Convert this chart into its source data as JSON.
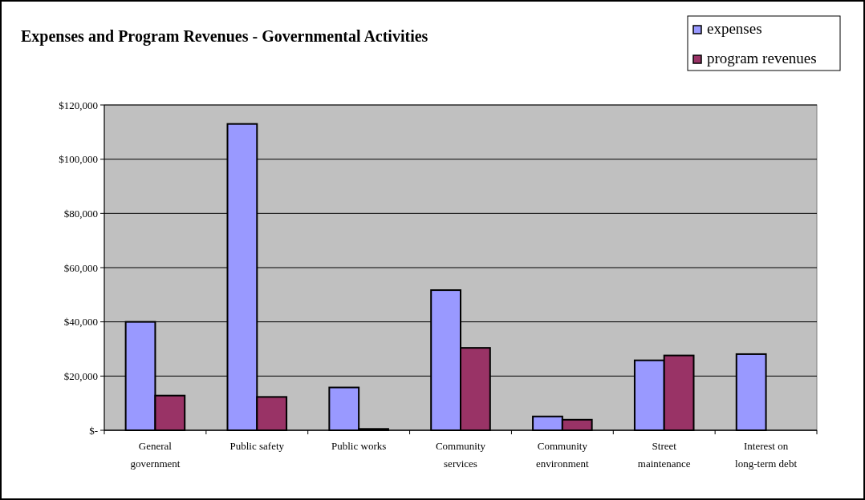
{
  "chart_data": {
    "type": "bar",
    "title": "Expenses and Program Revenues - Governmental Activities",
    "categories": [
      "General government",
      "Public safety",
      "Public works",
      "Community services",
      "Community environment",
      "Street maintenance",
      "Interest on long-term debt"
    ],
    "series": [
      {
        "name": "expenses",
        "color": "#9999ff",
        "values": [
          40000,
          113000,
          15800,
          51700,
          5100,
          25800,
          28100
        ]
      },
      {
        "name": "program revenues",
        "color": "#993366",
        "values": [
          12800,
          12300,
          500,
          30400,
          3900,
          27600,
          null
        ]
      }
    ],
    "ylim": [
      0,
      120000
    ],
    "yticks": [
      {
        "value": 0,
        "label": "$-"
      },
      {
        "value": 20000,
        "label": "$20,000"
      },
      {
        "value": 40000,
        "label": "$40,000"
      },
      {
        "value": 60000,
        "label": "$60,000"
      },
      {
        "value": 80000,
        "label": "$80,000"
      },
      {
        "value": 100000,
        "label": "$100,000"
      },
      {
        "value": 120000,
        "label": "$120,000"
      }
    ],
    "grid": "y",
    "legend": "top right"
  }
}
